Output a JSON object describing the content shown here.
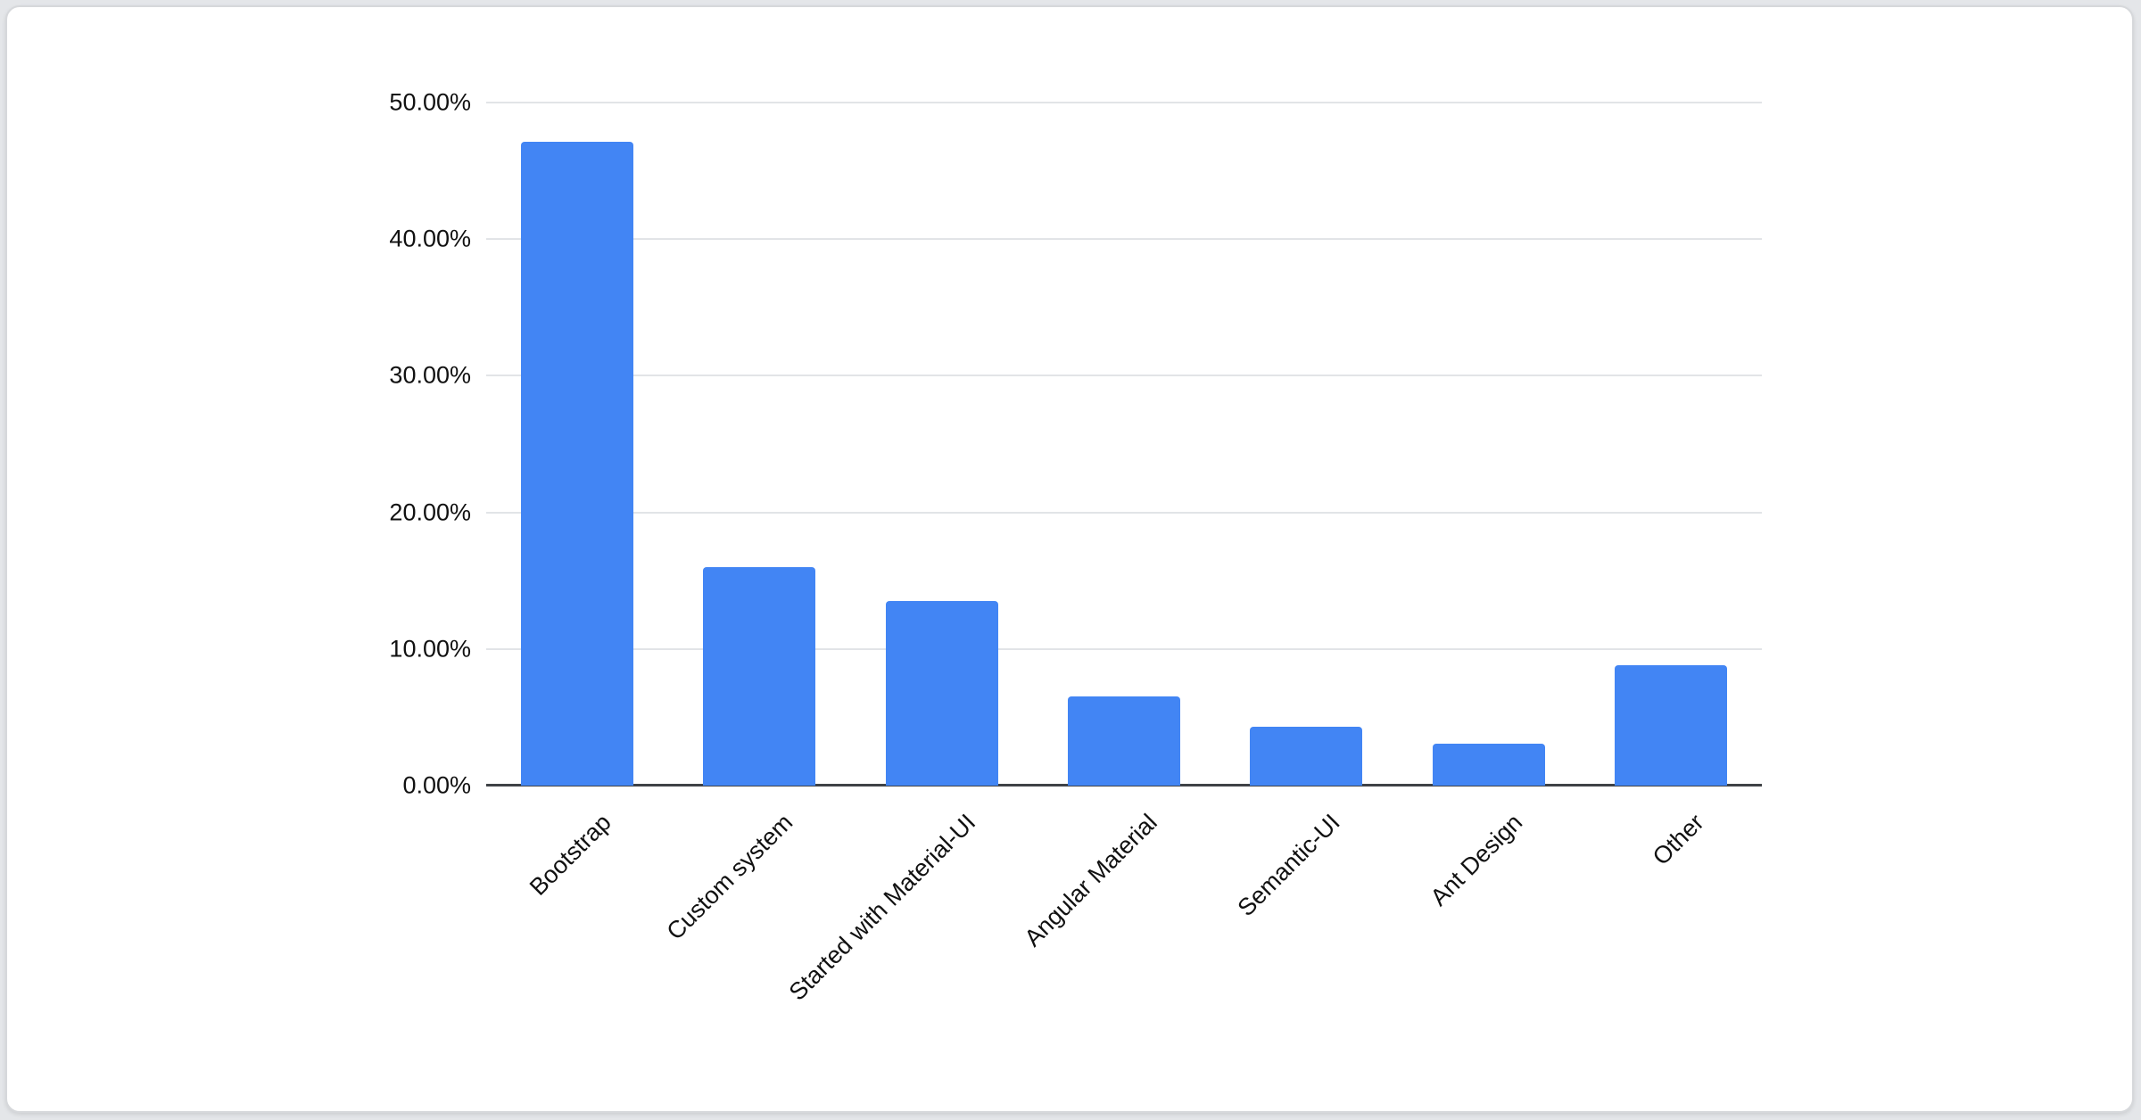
{
  "chart_data": {
    "type": "bar",
    "title": "",
    "xlabel": "",
    "ylabel": "",
    "categories": [
      "Bootstrap",
      "Custom system",
      "Started with Material-UI",
      "Angular Material",
      "Semantic-UI",
      "Ant Design",
      "Other"
    ],
    "values": [
      47.1,
      16.0,
      13.5,
      6.5,
      4.3,
      3.1,
      8.8
    ],
    "value_unit": "%",
    "ylim": [
      0,
      50
    ],
    "ytick_values": [
      0,
      10,
      20,
      30,
      40,
      50
    ],
    "ytick_labels": [
      "0.00%",
      "10.00%",
      "20.00%",
      "30.00%",
      "40.00%",
      "50.00%"
    ],
    "grid": true,
    "legend": false,
    "bar_color": "#4285f4",
    "x_label_rotation_deg": -45
  }
}
